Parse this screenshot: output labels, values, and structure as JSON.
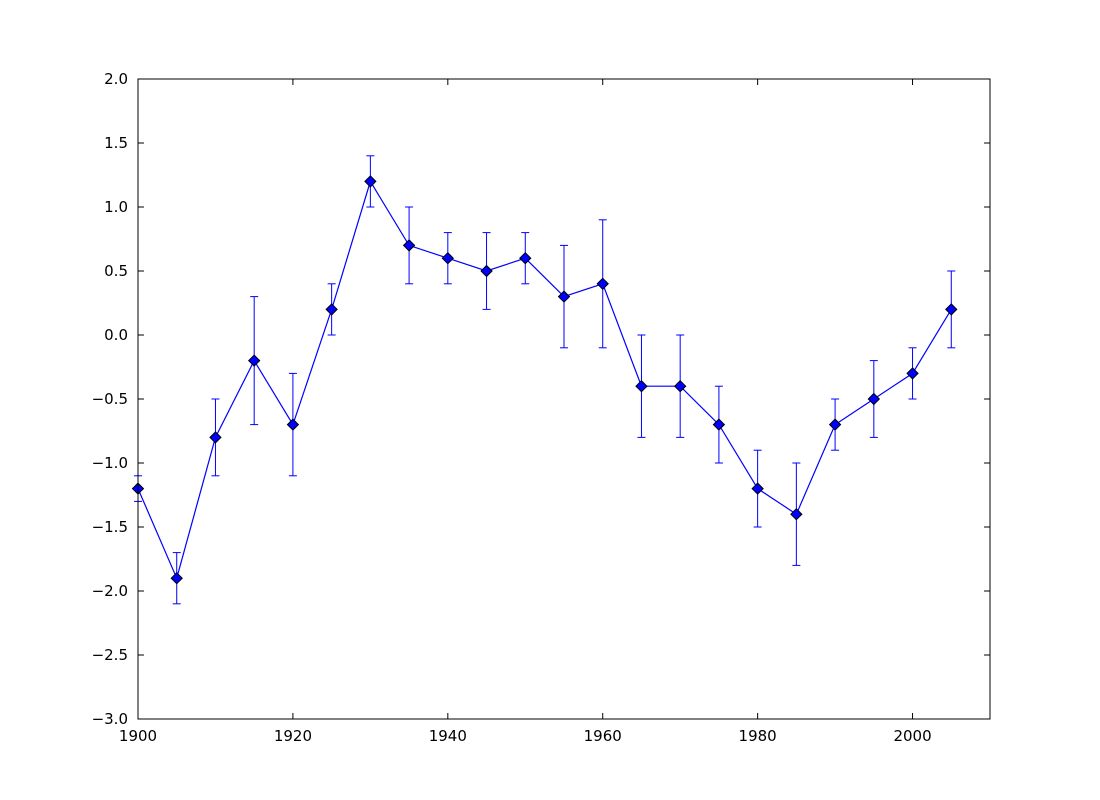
{
  "chart_data": {
    "type": "line",
    "title": "",
    "xlabel": "",
    "ylabel": "",
    "xlim": [
      1900,
      2010
    ],
    "ylim": [
      -3.0,
      2.0
    ],
    "grid": false,
    "legend": "none",
    "x_ticks": [
      1900,
      1920,
      1940,
      1960,
      1980,
      2000
    ],
    "x_tick_labels": [
      "1900",
      "1920",
      "1940",
      "1960",
      "1980",
      "2000"
    ],
    "y_ticks": [
      2.0,
      1.5,
      1.0,
      0.5,
      0.0,
      -0.5,
      -1.0,
      -1.5,
      -2.0,
      -2.5,
      -3.0
    ],
    "y_tick_labels": [
      "2.0",
      "1.5",
      "1.0",
      "0.5",
      "0.0",
      "−0.5",
      "−1.0",
      "−1.5",
      "−2.0",
      "−2.5",
      "−3.0"
    ],
    "series": [
      {
        "color": "#0000ff",
        "marker": "diamond",
        "x": [
          1900,
          1905,
          1910,
          1915,
          1920,
          1925,
          1930,
          1935,
          1940,
          1945,
          1950,
          1955,
          1960,
          1965,
          1970,
          1975,
          1980,
          1985,
          1990,
          1995,
          2000,
          2005
        ],
        "y": [
          -1.2,
          -1.9,
          -0.8,
          -0.2,
          -0.7,
          0.2,
          1.2,
          0.7,
          0.6,
          0.5,
          0.6,
          0.3,
          0.4,
          -0.4,
          -0.4,
          -0.7,
          -1.2,
          -1.4,
          -0.7,
          -0.5,
          -0.3,
          0.2
        ],
        "err_low": [
          -1.3,
          -2.1,
          -1.1,
          -0.7,
          -1.1,
          0.0,
          1.0,
          0.4,
          0.4,
          0.2,
          0.4,
          -0.1,
          -0.1,
          -0.8,
          -0.8,
          -1.0,
          -1.5,
          -1.8,
          -0.9,
          -0.8,
          -0.5,
          -0.1
        ],
        "err_high": [
          -1.1,
          -1.7,
          -0.5,
          0.3,
          -0.3,
          0.4,
          1.4,
          1.0,
          0.8,
          0.8,
          0.8,
          0.7,
          0.9,
          0.0,
          0.0,
          -0.4,
          -0.9,
          -1.0,
          -0.5,
          -0.2,
          -0.1,
          0.5
        ]
      }
    ]
  }
}
